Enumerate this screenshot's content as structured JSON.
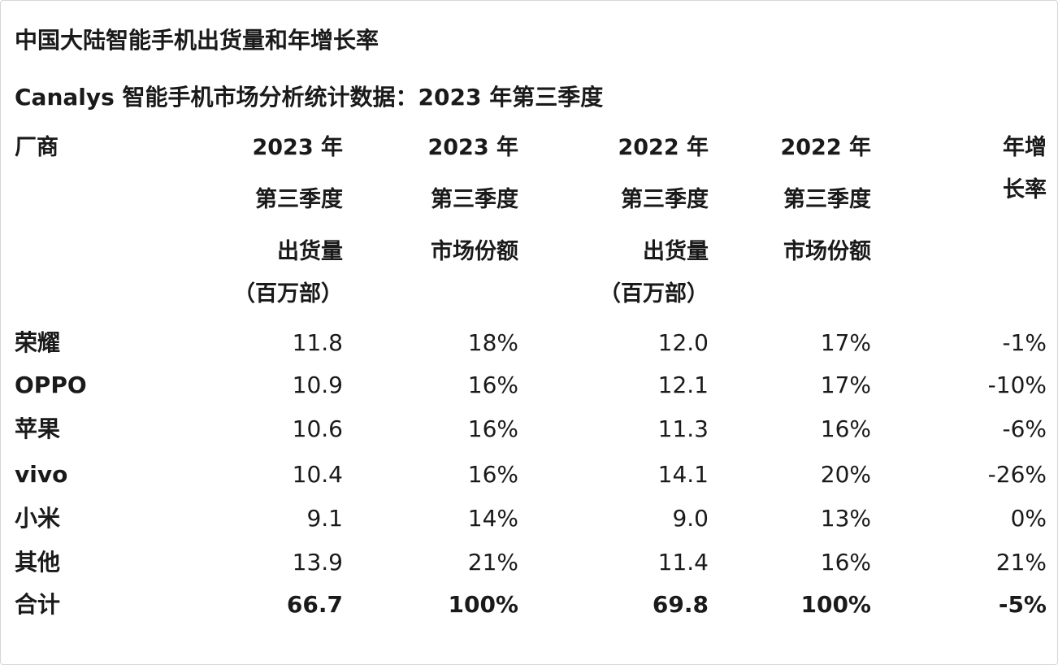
{
  "title": "中国大陆智能手机出货量和年增长率",
  "subtitle": "Canalys 智能手机市场分析统计数据：2023 年第三季度",
  "headers": {
    "vendor": "厂商",
    "col1": [
      "2023 年",
      "第三季度",
      "出货量",
      "（百万部）"
    ],
    "col2": [
      "2023 年",
      "第三季度",
      "市场份额"
    ],
    "col3": [
      "2022 年",
      "第三季度",
      "出货量",
      "（百万部）"
    ],
    "col4": [
      "2022 年",
      "第三季度",
      "市场份额"
    ],
    "col5": [
      "年增",
      "长率"
    ]
  },
  "rows": [
    {
      "vendor": "荣耀",
      "ship_2023": "11.8",
      "share_2023": "18%",
      "ship_2022": "12.0",
      "share_2022": "17%",
      "growth": "-1%"
    },
    {
      "vendor": "OPPO",
      "ship_2023": "10.9",
      "share_2023": "16%",
      "ship_2022": "12.1",
      "share_2022": "17%",
      "growth": "-10%"
    },
    {
      "vendor": "苹果",
      "ship_2023": "10.6",
      "share_2023": "16%",
      "ship_2022": "11.3",
      "share_2022": "16%",
      "growth": "-6%"
    },
    {
      "vendor": "vivo",
      "ship_2023": "10.4",
      "share_2023": "16%",
      "ship_2022": "14.1",
      "share_2022": "20%",
      "growth": "-26%"
    },
    {
      "vendor": "小米",
      "ship_2023": "9.1",
      "share_2023": "14%",
      "ship_2022": "9.0",
      "share_2022": "13%",
      "growth": "0%"
    },
    {
      "vendor": "其他",
      "ship_2023": "13.9",
      "share_2023": "21%",
      "ship_2022": "11.4",
      "share_2022": "16%",
      "growth": "21%"
    }
  ],
  "total": {
    "vendor": "合计",
    "ship_2023": "66.7",
    "share_2023": "100%",
    "ship_2022": "69.8",
    "share_2022": "100%",
    "growth": "-5%"
  }
}
